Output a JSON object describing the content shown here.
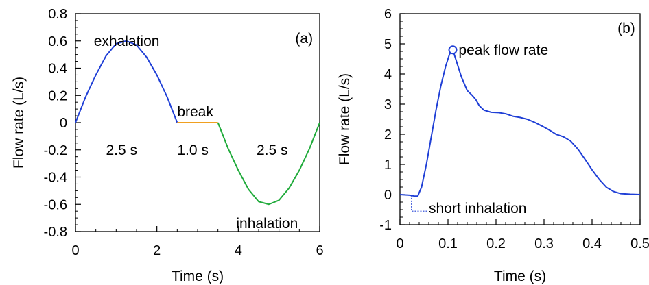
{
  "chart_data": [
    {
      "panel_label": "(a)",
      "type": "line",
      "xlabel": "Time (s)",
      "ylabel": "Flow rate (L/s)",
      "xlim": [
        0,
        6
      ],
      "ylim": [
        -0.8,
        0.8
      ],
      "xticks": [
        0,
        2,
        4,
        6
      ],
      "yticks": [
        0.8,
        0.6,
        0.4,
        0.2,
        0,
        -0.2,
        -0.4,
        -0.6,
        -0.8
      ],
      "ytick_labels": [
        "0.8",
        "0.6",
        "0.4",
        "0.2",
        "0",
        "-0.2",
        "-0.4",
        "-0.6",
        "-0.8"
      ],
      "grid": false,
      "series": [
        {
          "color": "#1f3fd6",
          "x": [
            0,
            0.25,
            0.5,
            0.75,
            1.0,
            1.25,
            1.5,
            1.75,
            2.0,
            2.25,
            2.5
          ],
          "y": [
            0,
            0.19,
            0.35,
            0.49,
            0.58,
            0.6,
            0.57,
            0.48,
            0.35,
            0.19,
            0
          ]
        },
        {
          "color": "#f0a020",
          "x": [
            2.5,
            3.5
          ],
          "y": [
            0,
            0
          ]
        },
        {
          "color": "#1faa3a",
          "x": [
            3.5,
            3.75,
            4.0,
            4.25,
            4.5,
            4.75,
            5.0,
            5.25,
            5.5,
            5.75,
            6.0
          ],
          "y": [
            0,
            -0.19,
            -0.35,
            -0.49,
            -0.58,
            -0.6,
            -0.57,
            -0.48,
            -0.35,
            -0.19,
            0
          ]
        }
      ],
      "annotations": [
        {
          "text": "exhalation",
          "x": 0.45,
          "y": 0.6
        },
        {
          "text": "break",
          "x": 2.5,
          "y": 0.08
        },
        {
          "text": "2.5 s",
          "x": 0.75,
          "y": -0.2
        },
        {
          "text": "1.0 s",
          "x": 2.5,
          "y": -0.2
        },
        {
          "text": "2.5 s",
          "x": 4.45,
          "y": -0.2
        },
        {
          "text": "inhalation",
          "x": 3.95,
          "y": -0.74
        },
        {
          "text": "(a)",
          "x": 5.4,
          "y": 0.62
        }
      ]
    },
    {
      "panel_label": "(b)",
      "type": "line",
      "xlabel": "Time (s)",
      "ylabel": "Flow rate (L/s)",
      "xlim": [
        0,
        0.5
      ],
      "ylim": [
        -1,
        6
      ],
      "xticks": [
        0,
        0.1,
        0.2,
        0.3,
        0.4,
        0.5
      ],
      "xtick_labels": [
        "0",
        "0.1",
        "0.2",
        "0.3",
        "0.4",
        "0.5"
      ],
      "yticks": [
        -1,
        0,
        1,
        2,
        3,
        4,
        5,
        6
      ],
      "ytick_labels": [
        "-1",
        "0",
        "1",
        "2",
        "3",
        "4",
        "5",
        "6"
      ],
      "grid": false,
      "series": [
        {
          "color": "#1f3fd6",
          "x": [
            0,
            0.02,
            0.03,
            0.037,
            0.045,
            0.055,
            0.065,
            0.075,
            0.085,
            0.095,
            0.103,
            0.11,
            0.118,
            0.128,
            0.14,
            0.15,
            0.158,
            0.165,
            0.175,
            0.19,
            0.205,
            0.22,
            0.235,
            0.25,
            0.265,
            0.28,
            0.295,
            0.31,
            0.325,
            0.34,
            0.355,
            0.37,
            0.385,
            0.4,
            0.415,
            0.43,
            0.445,
            0.46,
            0.48,
            0.5
          ],
          "y": [
            0,
            -0.02,
            -0.05,
            -0.05,
            0.25,
            1.0,
            1.9,
            2.8,
            3.6,
            4.25,
            4.65,
            4.8,
            4.4,
            3.9,
            3.45,
            3.3,
            3.15,
            2.95,
            2.8,
            2.73,
            2.72,
            2.68,
            2.6,
            2.56,
            2.5,
            2.4,
            2.28,
            2.15,
            2.0,
            1.92,
            1.78,
            1.52,
            1.18,
            0.82,
            0.5,
            0.24,
            0.1,
            0.03,
            0.01,
            0.0
          ]
        }
      ],
      "marker": {
        "x": 0.11,
        "y": 4.8
      },
      "short_inhalation_pointer": {
        "x": 0.024,
        "y_from": -0.02,
        "y_to": -0.55,
        "x_end": 0.058
      },
      "annotations": [
        {
          "text": "peak flow rate",
          "x": 0.122,
          "y": 4.8
        },
        {
          "text": "short inhalation",
          "x": 0.06,
          "y": -0.45
        },
        {
          "text": "(b)",
          "x": 0.453,
          "y": 5.52
        }
      ]
    }
  ]
}
